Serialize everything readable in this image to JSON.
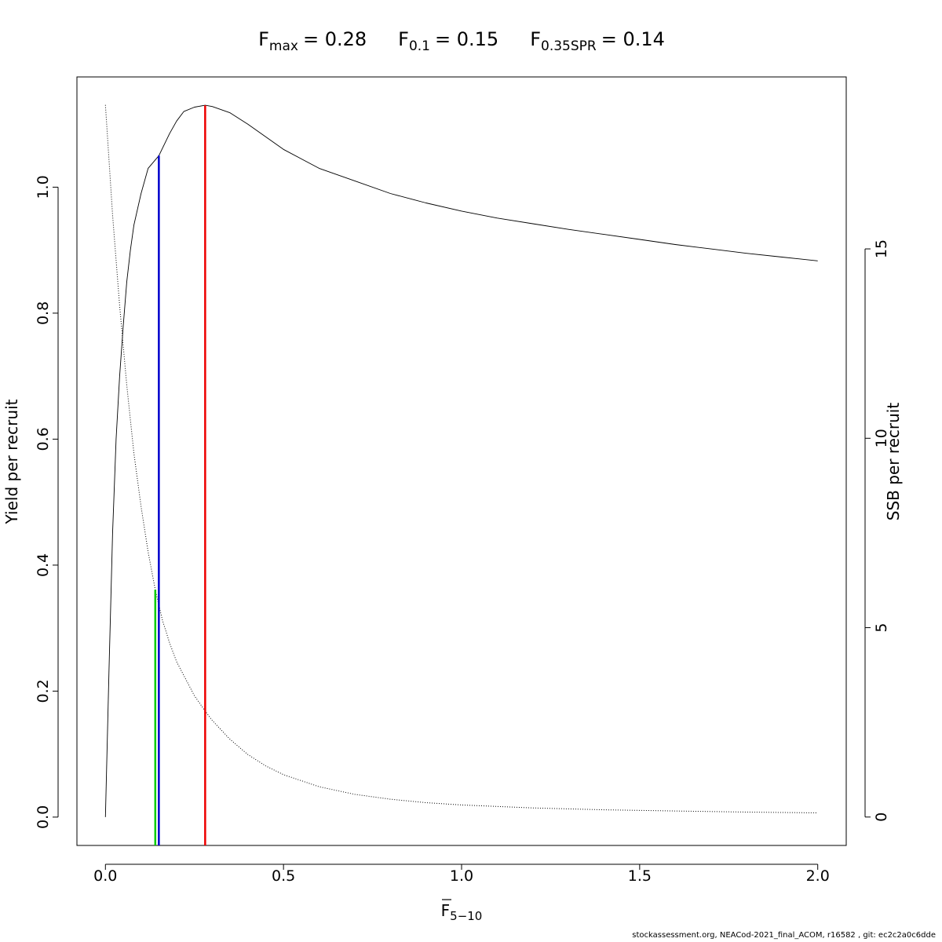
{
  "chart_data": {
    "type": "line",
    "title": {
      "fmax": {
        "label": "F",
        "sub": "max",
        "value": "= 0.28"
      },
      "f01": {
        "label": "F",
        "sub": "0.1",
        "value": "= 0.15"
      },
      "fspr": {
        "label": "F",
        "sub": "0.35SPR",
        "value": "= 0.14"
      }
    },
    "xlabel": {
      "main": "F",
      "sub": "5−10",
      "overline": true
    },
    "ylabel": "Yield per recruit",
    "y2label": "SSB per recruit",
    "xlim": [
      -0.08,
      2.08
    ],
    "ylim": [
      -0.045,
      1.175
    ],
    "y2lim": [
      -0.75,
      19.54
    ],
    "x_ticks": [
      0,
      0.5,
      1,
      1.5,
      2
    ],
    "x_tick_labels": [
      "0.0",
      "0.5",
      "1.0",
      "1.5",
      "2.0"
    ],
    "y_ticks": [
      0,
      0.2,
      0.4,
      0.6,
      0.8,
      1.0
    ],
    "y_tick_labels": [
      "0.0",
      "0.2",
      "0.4",
      "0.6",
      "0.8",
      "1.0"
    ],
    "y2_ticks": [
      0,
      5,
      10,
      15
    ],
    "y2_tick_labels": [
      "0",
      "5",
      "10",
      "15"
    ],
    "series": [
      {
        "name": "Yield per recruit",
        "axis": "left",
        "style": "solid",
        "x": [
          0,
          0.01,
          0.02,
          0.03,
          0.04,
          0.05,
          0.06,
          0.07,
          0.08,
          0.1,
          0.12,
          0.15,
          0.18,
          0.2,
          0.22,
          0.25,
          0.28,
          0.3,
          0.35,
          0.4,
          0.5,
          0.6,
          0.7,
          0.8,
          0.9,
          1.0,
          1.1,
          1.2,
          1.3,
          1.4,
          1.5,
          1.6,
          1.7,
          1.8,
          1.9,
          2.0
        ],
        "y": [
          0.0,
          0.23,
          0.45,
          0.6,
          0.7,
          0.78,
          0.85,
          0.9,
          0.94,
          0.99,
          1.03,
          1.05,
          1.085,
          1.105,
          1.12,
          1.127,
          1.13,
          1.128,
          1.118,
          1.1,
          1.06,
          1.03,
          1.01,
          0.99,
          0.975,
          0.962,
          0.951,
          0.942,
          0.933,
          0.925,
          0.917,
          0.909,
          0.902,
          0.895,
          0.889,
          0.883
        ]
      },
      {
        "name": "SSB per recruit",
        "axis": "right",
        "style": "dotted",
        "x": [
          0,
          0.02,
          0.04,
          0.06,
          0.08,
          0.1,
          0.12,
          0.14,
          0.16,
          0.18,
          0.2,
          0.25,
          0.28,
          0.3,
          0.35,
          0.4,
          0.45,
          0.5,
          0.6,
          0.7,
          0.8,
          0.9,
          1.0,
          1.2,
          1.4,
          1.6,
          1.8,
          2.0
        ],
        "y": [
          18.8,
          15.9,
          13.5,
          11.4,
          9.6,
          8.2,
          7.0,
          6.0,
          5.2,
          4.6,
          4.1,
          3.2,
          2.8,
          2.55,
          2.05,
          1.65,
          1.35,
          1.12,
          0.8,
          0.6,
          0.47,
          0.38,
          0.32,
          0.24,
          0.19,
          0.16,
          0.13,
          0.11
        ]
      }
    ],
    "reference_lines": [
      {
        "name": "F0.35SPR",
        "x": 0.14,
        "color": "#00cc00",
        "axis": "right",
        "y_top": 6.0
      },
      {
        "name": "F0.1",
        "x": 0.15,
        "color": "#0000cc",
        "axis": "left",
        "y_top": 1.05
      },
      {
        "name": "Fmax",
        "x": 0.28,
        "color": "#ee0000",
        "axis": "left",
        "y_top": 1.13
      }
    ],
    "grid": false
  },
  "footer": "stockassessment.org, NEACod-2021_final_ACOM, r16582 , git: ec2c2a0c6dde"
}
